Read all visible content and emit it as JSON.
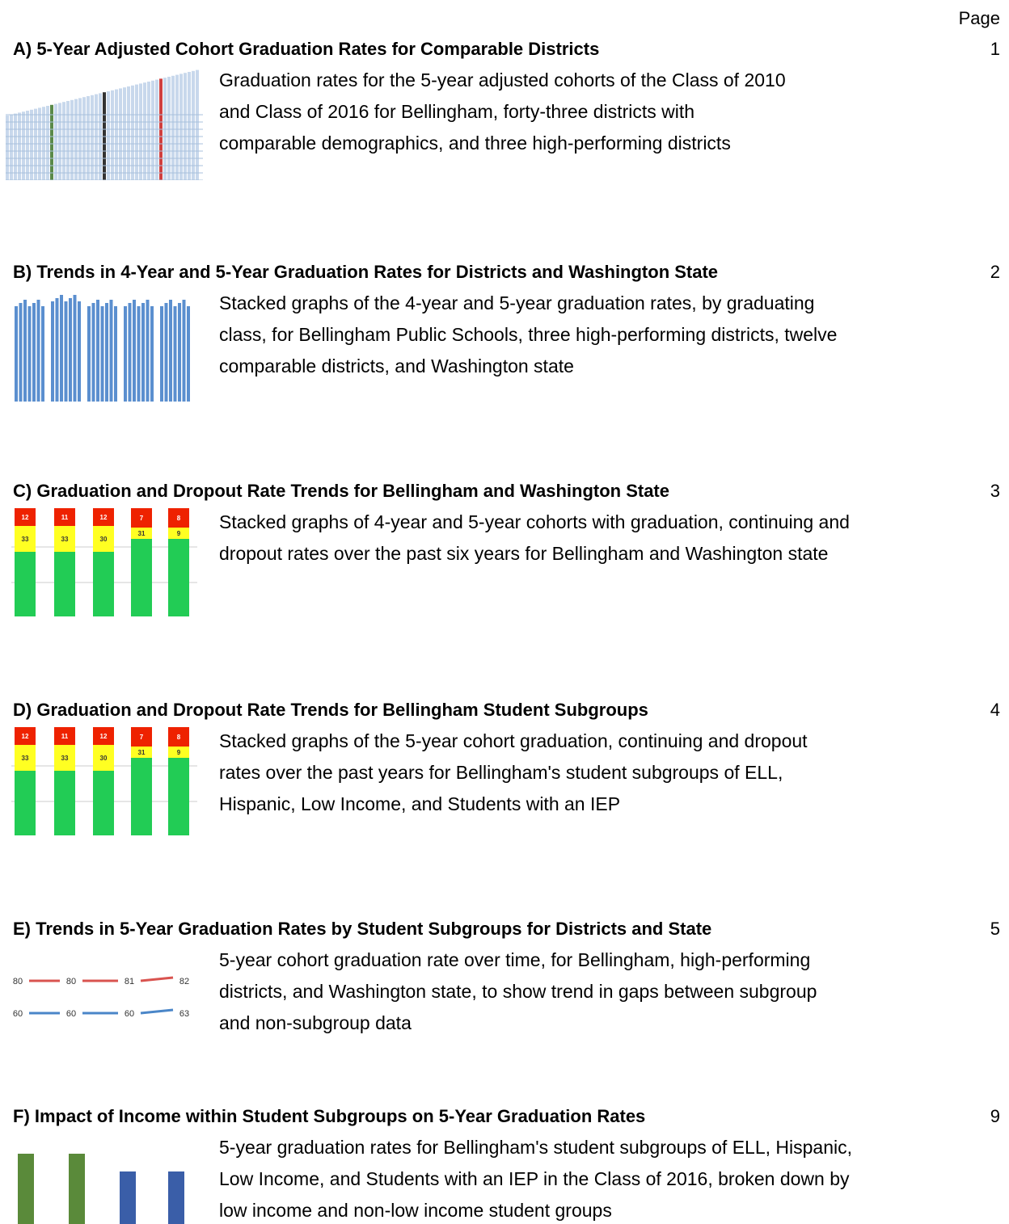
{
  "header": {
    "page_label": "Page"
  },
  "items": [
    {
      "title": "A) 5-Year Adjusted Cohort Graduation Rates for Comparable Districts",
      "page": "1",
      "description": [
        "Graduation rates for the 5-year adjusted cohorts of the Class of 2010",
        "and Class of 2016 for Bellingham, forty-three districts with",
        "comparable demographics, and three high-performing districts"
      ]
    },
    {
      "title": "B) Trends in 4-Year and 5-Year Graduation Rates for Districts and Washington State",
      "page": "2",
      "description": [
        "Stacked graphs of the 4-year and 5-year graduation rates, by graduating",
        "class, for Bellingham Public Schools, three high-performing districts, twelve",
        "comparable districts, and Washington state"
      ]
    },
    {
      "title": "C) Graduation and Dropout Rate Trends for Bellingham and Washington State",
      "page": "3",
      "description": [
        "Stacked graphs of 4-year and 5-year cohorts with graduation, continuing and",
        "dropout rates over the past six years for Bellingham and Washington state"
      ],
      "thumbnail": {
        "dropout": [
          "12",
          "11",
          "12",
          "7",
          "8"
        ],
        "continuing": [
          "33",
          "33",
          "30",
          "31",
          "9"
        ]
      }
    },
    {
      "title": "D) Graduation and Dropout Rate Trends for Bellingham Student Subgroups",
      "page": "4",
      "description": [
        "Stacked graphs of the 5-year cohort graduation, continuing and dropout",
        "rates over the past years for Bellingham's student subgroups of ELL,",
        "Hispanic, Low Income, and Students with an IEP"
      ],
      "thumbnail": {
        "dropout": [
          "12",
          "11",
          "12",
          "7",
          "8"
        ],
        "continuing": [
          "33",
          "33",
          "30",
          "31",
          "9"
        ]
      }
    },
    {
      "title": "E) Trends in 5-Year Graduation Rates by Student Subgroups for Districts and State",
      "page": "5",
      "description": [
        "5-year cohort graduation rate over time, for Bellingham, high-performing",
        "districts, and Washington state, to show trend in gaps between subgroup",
        "and non-subgroup data"
      ],
      "thumbnail": {
        "upper": [
          "80",
          "80",
          "81",
          "82"
        ],
        "lower": [
          "60",
          "60",
          "60",
          "63"
        ]
      }
    },
    {
      "title": "F) Impact of Income within Student Subgroups on 5-Year Graduation Rates",
      "page": "9",
      "description": [
        "5-year graduation rates for Bellingham's student subgroups of ELL, Hispanic,",
        "Low Income, and Students with an IEP in the Class of 2016, broken down by",
        "low income and non-low income student groups"
      ]
    }
  ]
}
